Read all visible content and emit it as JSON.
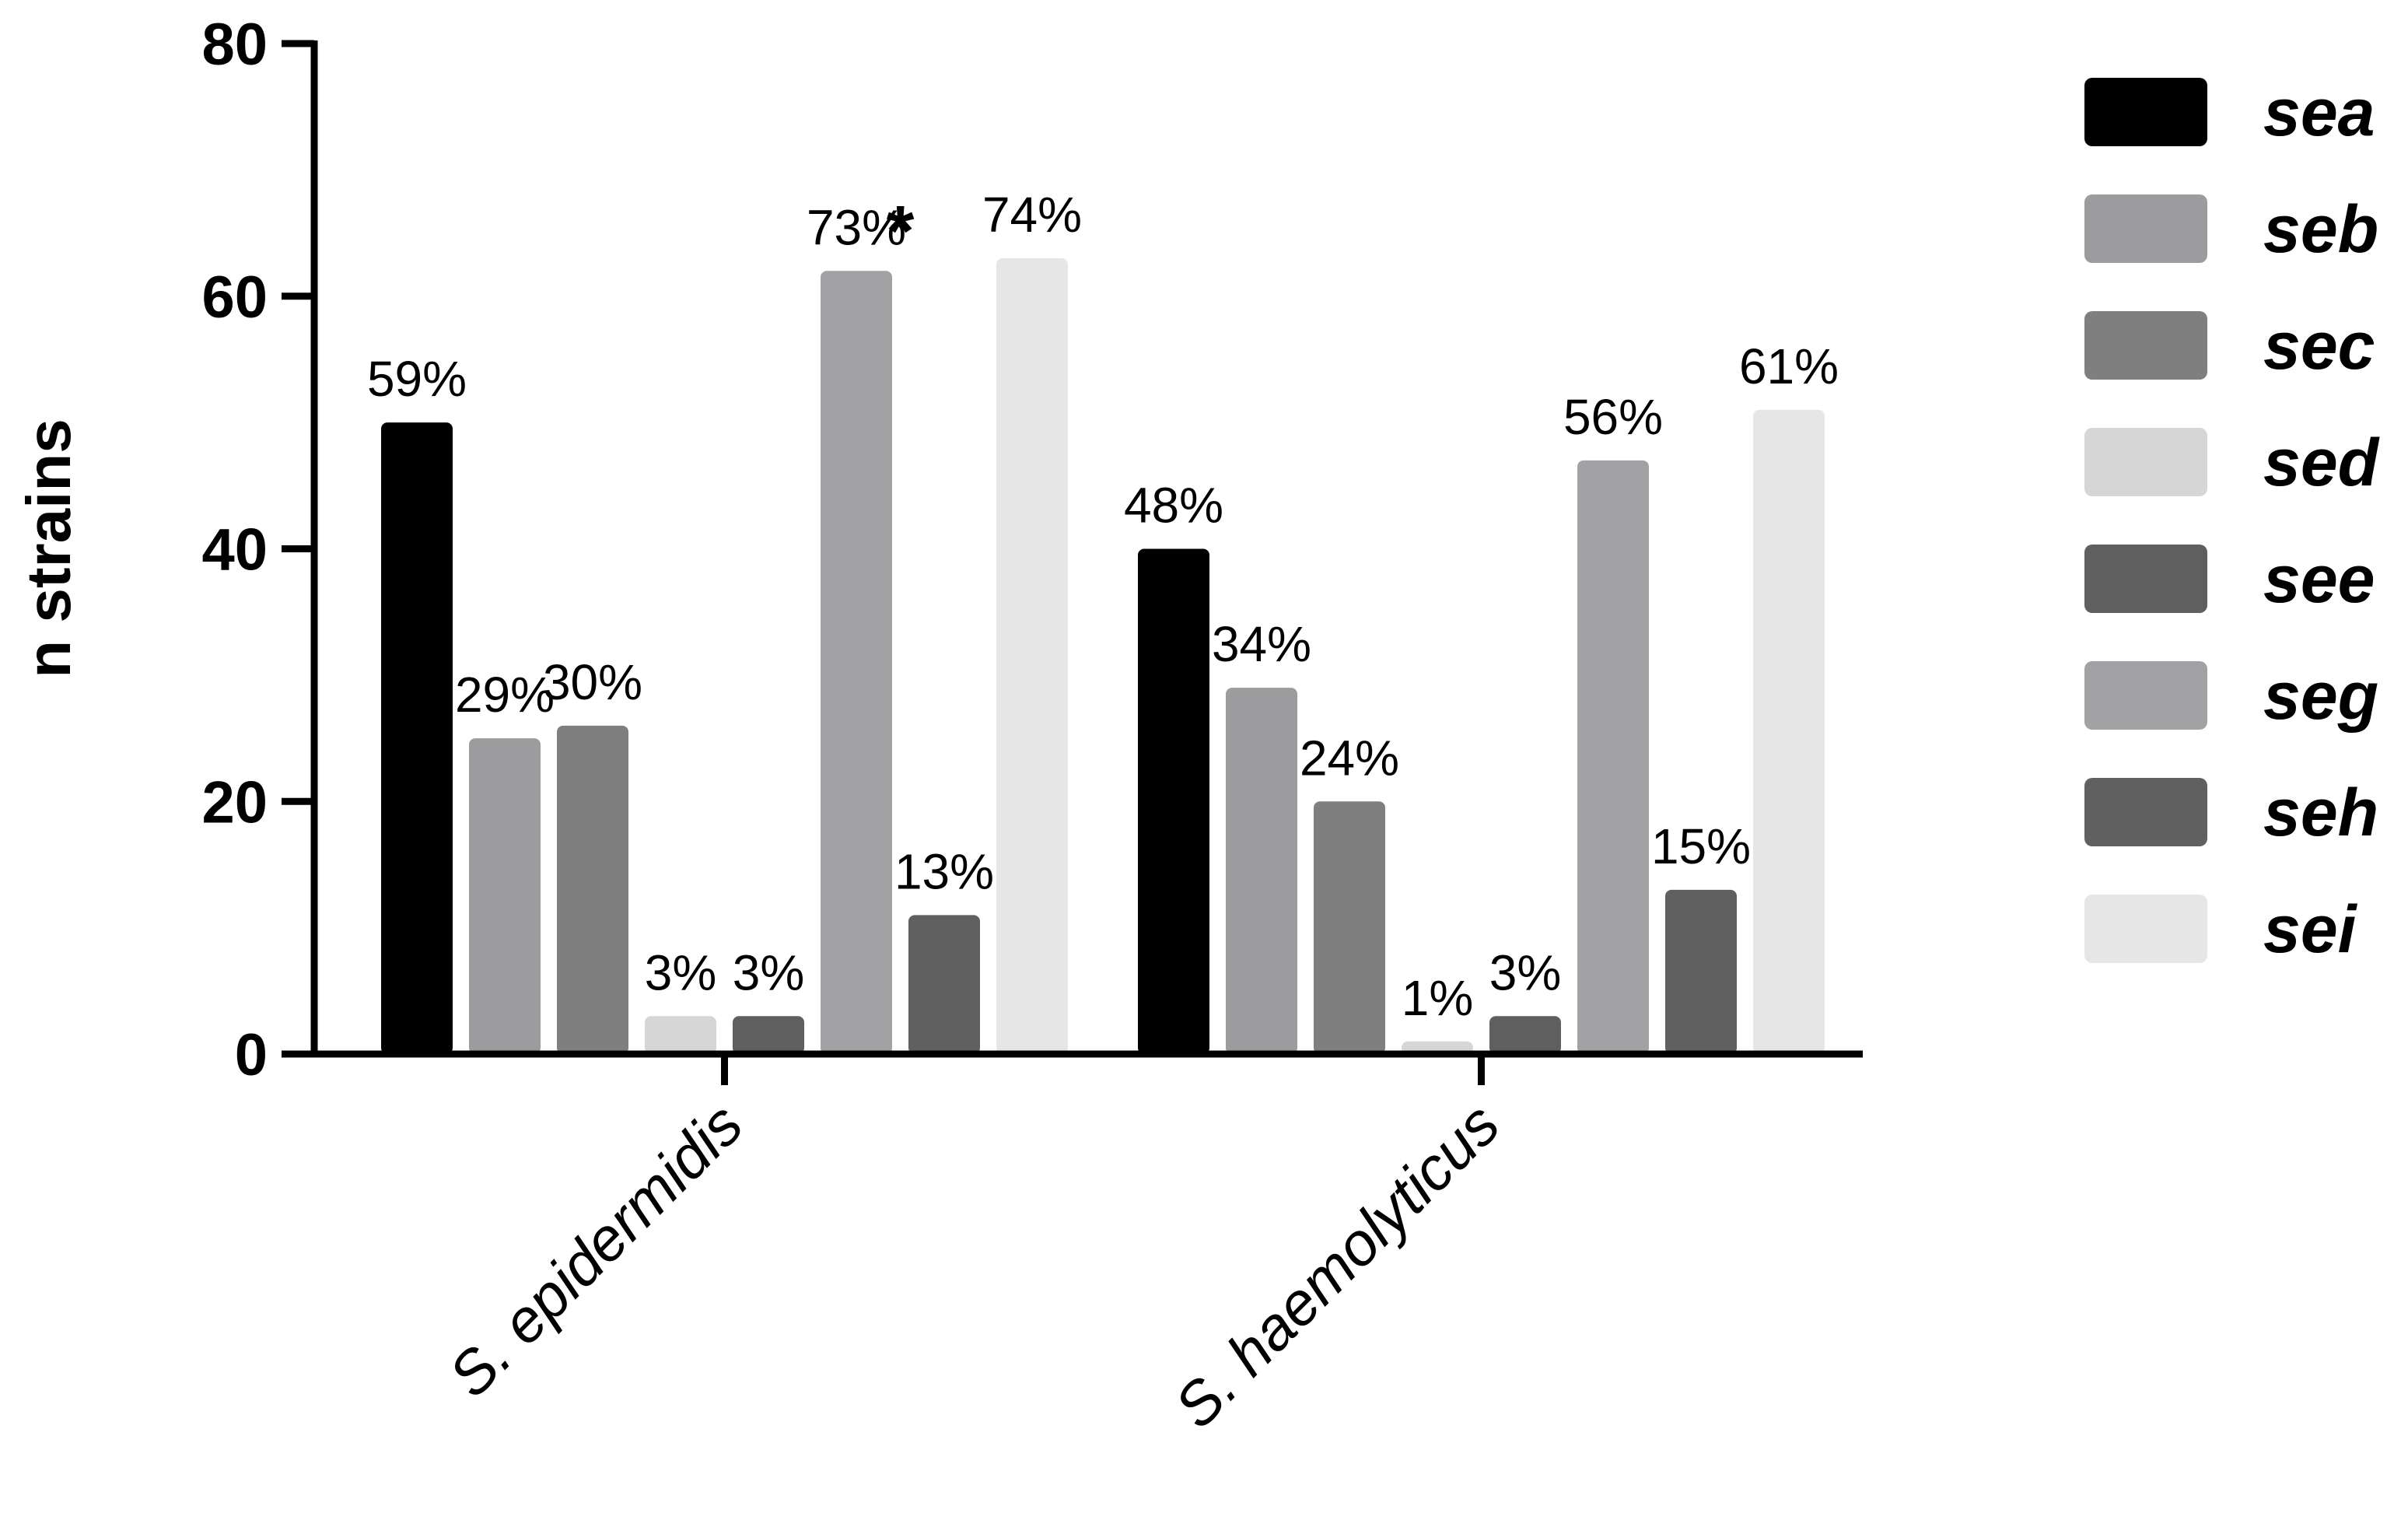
{
  "chart_data": {
    "type": "bar",
    "xlabel": "",
    "ylabel": "n strains",
    "ylim": [
      0,
      80
    ],
    "yticks": [
      0,
      20,
      40,
      60,
      80
    ],
    "categories": [
      "S. epidermidis",
      "S. haemolyticus"
    ],
    "grid": false,
    "legend_position": "right",
    "series": [
      {
        "name": "sea",
        "color": "#000000",
        "values": [
          50,
          40
        ],
        "labels": [
          "59%",
          "48%"
        ]
      },
      {
        "name": "seb",
        "color": "#9c9c9f",
        "values": [
          25,
          29
        ],
        "labels": [
          "29%",
          "34%"
        ]
      },
      {
        "name": "sec",
        "color": "#7f7f7f",
        "values": [
          26,
          20
        ],
        "labels": [
          "30%",
          "24%"
        ]
      },
      {
        "name": "sed",
        "color": "#d6d6d6",
        "values": [
          3,
          1
        ],
        "labels": [
          "3%",
          "1%"
        ]
      },
      {
        "name": "see",
        "color": "#5f5f5f",
        "values": [
          3,
          3
        ],
        "labels": [
          "3%",
          "3%"
        ]
      },
      {
        "name": "seg",
        "color": "#a2a2a5",
        "values": [
          62,
          47
        ],
        "labels": [
          "73%",
          "56%"
        ]
      },
      {
        "name": "seh",
        "color": "#606060",
        "values": [
          11,
          13
        ],
        "labels": [
          "13%",
          "15%"
        ]
      },
      {
        "name": "sei",
        "color": "#e6e6e6",
        "values": [
          63,
          51
        ],
        "labels": [
          "74%",
          "61%"
        ]
      }
    ],
    "annotations": [
      {
        "text": "*",
        "category": "S. epidermidis",
        "between_series": [
          "seg",
          "seh"
        ]
      }
    ]
  }
}
